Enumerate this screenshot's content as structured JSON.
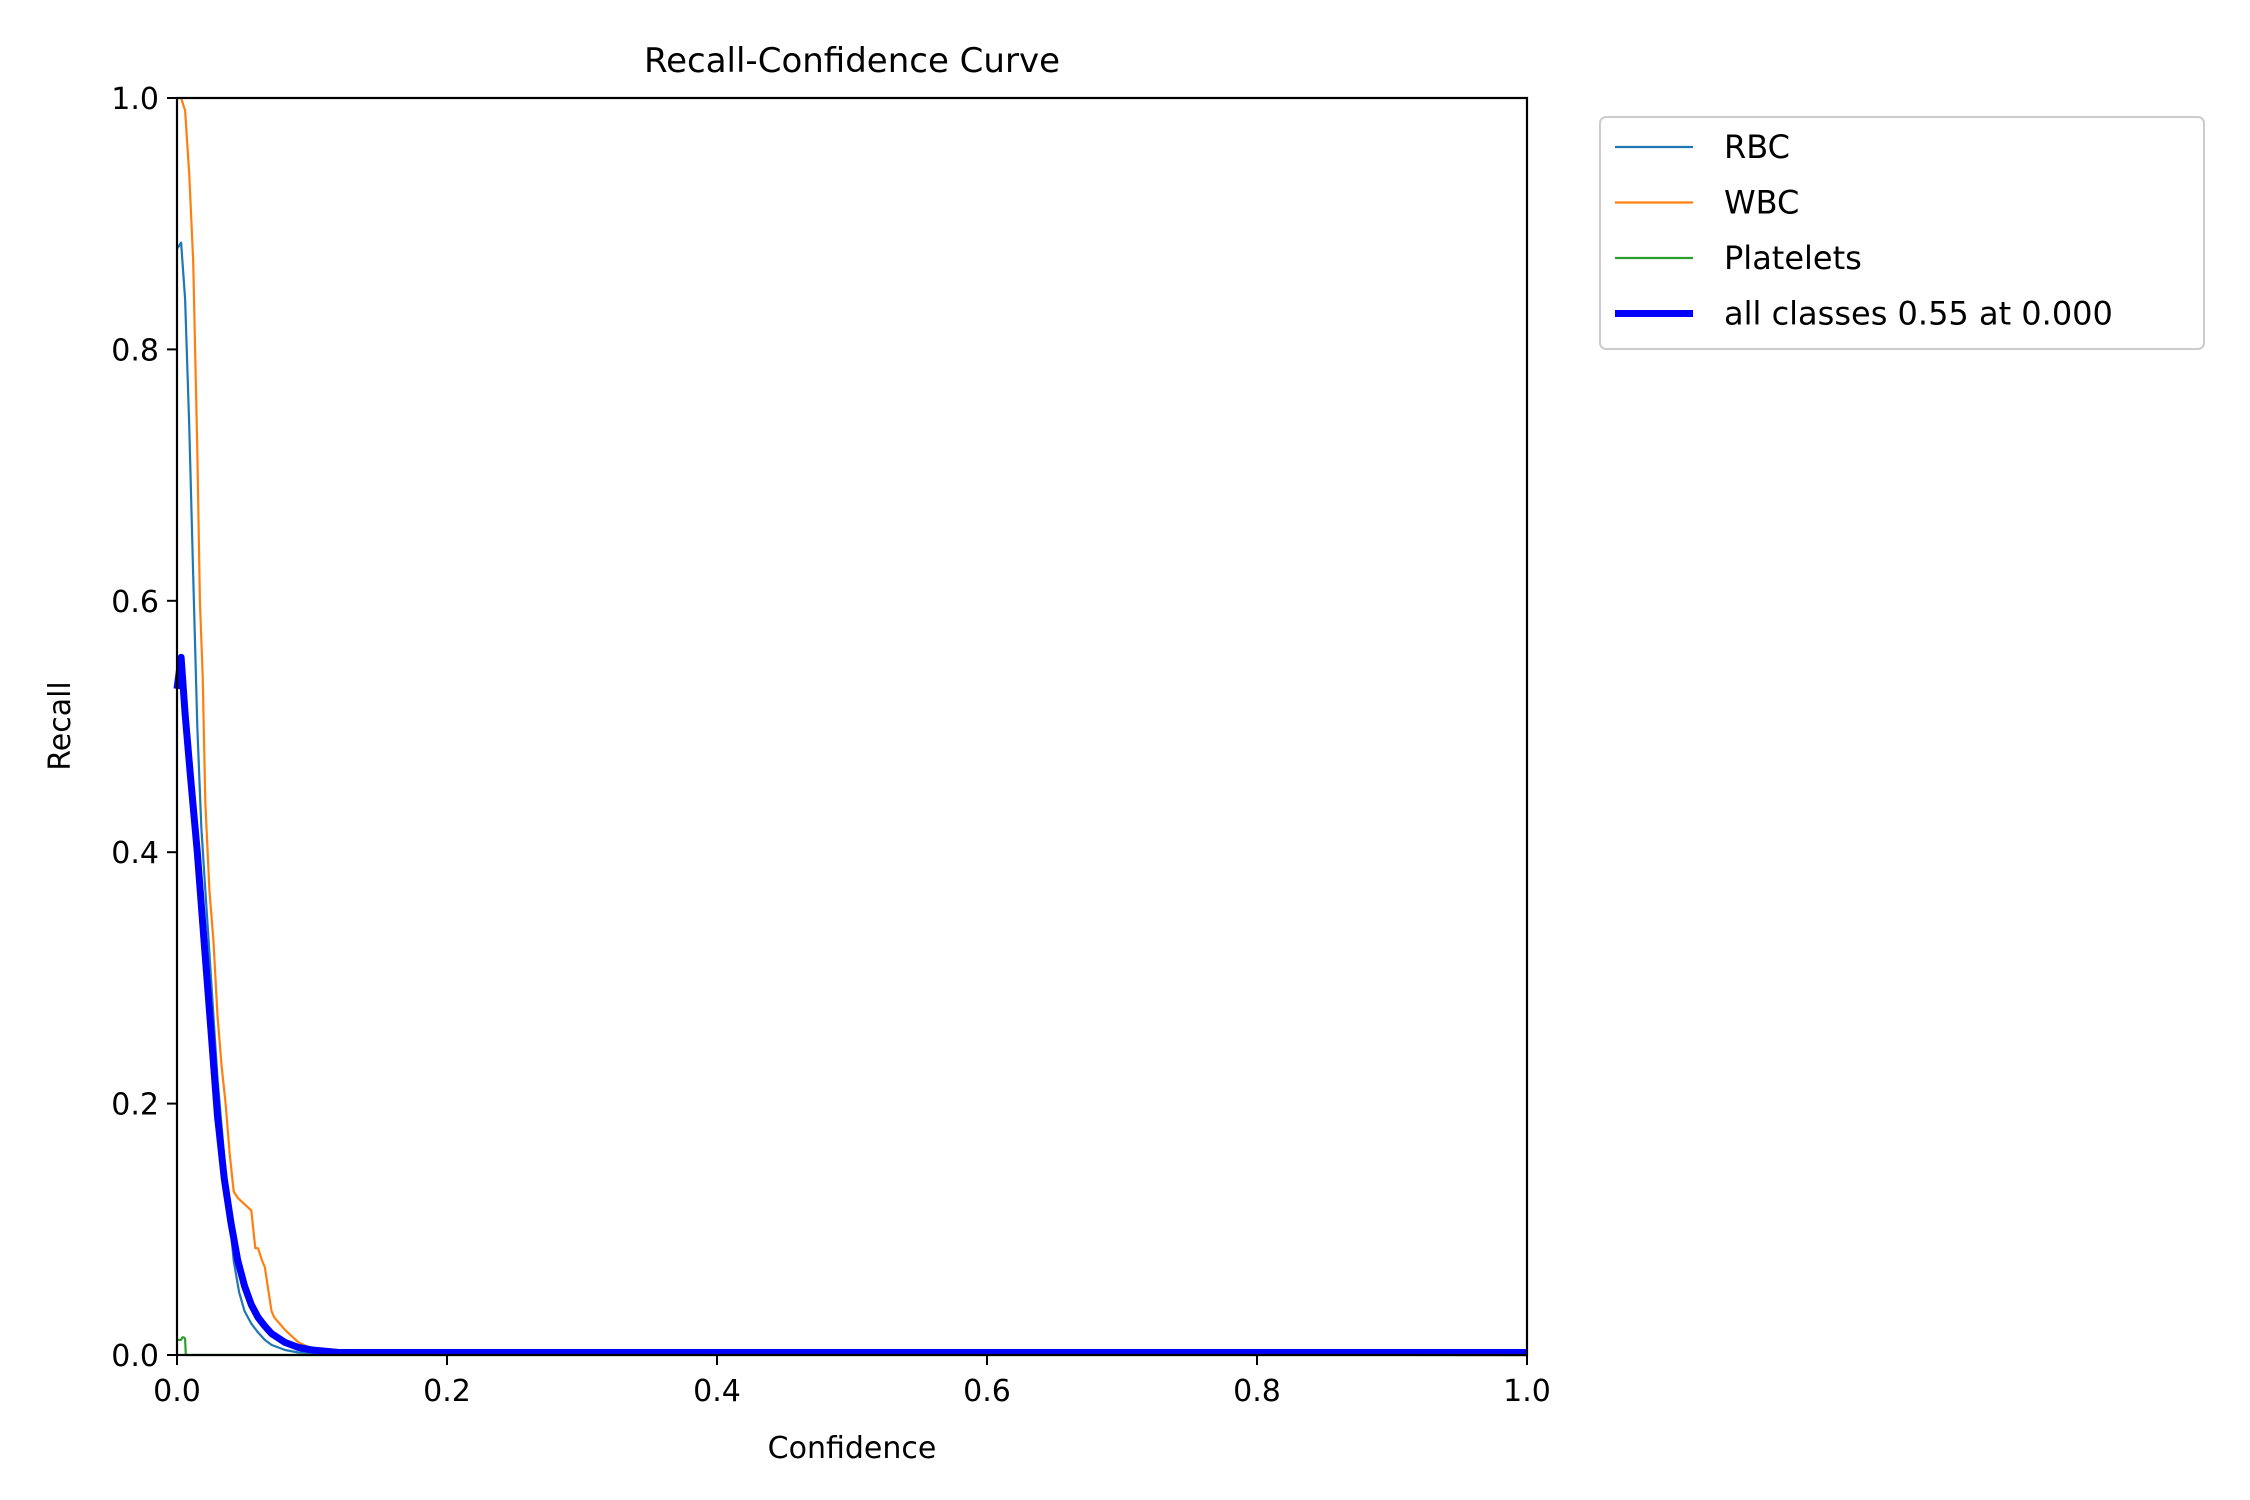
{
  "chart_data": {
    "type": "line",
    "title": "Recall-Confidence Curve",
    "xlabel": "Confidence",
    "ylabel": "Recall",
    "xlim": [
      0,
      1
    ],
    "ylim": [
      0,
      1
    ],
    "xticks": [
      "0.0",
      "0.2",
      "0.4",
      "0.6",
      "0.8",
      "1.0"
    ],
    "yticks": [
      "0.0",
      "0.2",
      "0.4",
      "0.6",
      "0.8",
      "1.0"
    ],
    "grid": false,
    "legend_position": "outside top-right",
    "series": [
      {
        "name": "RBC",
        "color": "#1f77b4",
        "width": "thin",
        "x": [
          0.0,
          0.003,
          0.006,
          0.009,
          0.012,
          0.015,
          0.018,
          0.021,
          0.024,
          0.027,
          0.03,
          0.034,
          0.038,
          0.042,
          0.046,
          0.05,
          0.055,
          0.06,
          0.065,
          0.07,
          0.08,
          0.09,
          0.1,
          0.11,
          0.12,
          1.0
        ],
        "y": [
          0.88,
          0.885,
          0.84,
          0.74,
          0.62,
          0.5,
          0.42,
          0.37,
          0.32,
          0.27,
          0.22,
          0.17,
          0.12,
          0.075,
          0.05,
          0.035,
          0.025,
          0.018,
          0.012,
          0.008,
          0.004,
          0.002,
          0.0015,
          0.001,
          0.0005,
          0.0
        ]
      },
      {
        "name": "WBC",
        "color": "#ff7f0e",
        "width": "thin",
        "x": [
          0.003,
          0.006,
          0.009,
          0.012,
          0.015,
          0.017,
          0.019,
          0.021,
          0.024,
          0.027,
          0.03,
          0.033,
          0.036,
          0.039,
          0.042,
          0.045,
          0.05,
          0.055,
          0.058,
          0.06,
          0.063,
          0.065,
          0.07,
          0.072,
          0.08,
          0.09,
          0.1,
          0.11,
          0.12,
          1.0
        ],
        "y": [
          1.0,
          0.99,
          0.94,
          0.87,
          0.72,
          0.6,
          0.54,
          0.44,
          0.37,
          0.33,
          0.27,
          0.23,
          0.2,
          0.16,
          0.13,
          0.125,
          0.12,
          0.115,
          0.085,
          0.085,
          0.075,
          0.07,
          0.035,
          0.03,
          0.02,
          0.01,
          0.005,
          0.002,
          0.001,
          0.0
        ]
      },
      {
        "name": "Platelets",
        "color": "#2ca02c",
        "width": "thin",
        "x": [
          0.0,
          0.003,
          0.004,
          0.005,
          0.006,
          0.0065,
          1.0
        ],
        "y": [
          0.012,
          0.012,
          0.014,
          0.014,
          0.013,
          0.0,
          0.0
        ]
      },
      {
        "name": "all classes 0.55 at 0.000",
        "color": "#0000ff",
        "width": "thick",
        "x": [
          0.0,
          0.003,
          0.006,
          0.01,
          0.015,
          0.02,
          0.025,
          0.03,
          0.035,
          0.04,
          0.045,
          0.05,
          0.055,
          0.06,
          0.065,
          0.07,
          0.08,
          0.09,
          0.1,
          0.11,
          0.12,
          0.15,
          1.0
        ],
        "y": [
          0.53,
          0.555,
          0.51,
          0.46,
          0.4,
          0.33,
          0.26,
          0.19,
          0.14,
          0.105,
          0.075,
          0.055,
          0.04,
          0.03,
          0.023,
          0.017,
          0.01,
          0.006,
          0.004,
          0.003,
          0.002,
          0.002,
          0.002
        ]
      }
    ]
  }
}
